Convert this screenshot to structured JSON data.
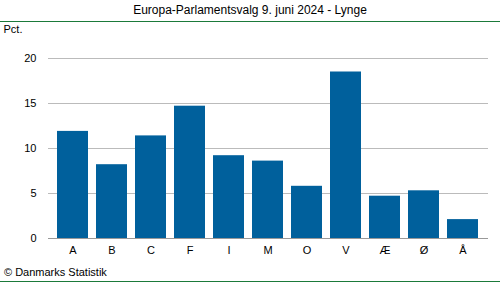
{
  "chart_data": {
    "type": "bar",
    "title": "Europa-Parlamentsvalg 9. juni 2024 - Lynge",
    "categories": [
      "A",
      "B",
      "C",
      "F",
      "I",
      "M",
      "O",
      "V",
      "Æ",
      "Ø",
      "Å"
    ],
    "values": [
      11.9,
      8.2,
      11.4,
      14.7,
      9.2,
      8.6,
      5.8,
      18.5,
      4.7,
      5.3,
      2.1
    ],
    "color": "#00609c",
    "ylabel": "Pct.",
    "caption": "© Danmarks Statistik",
    "ylim": [
      0,
      20
    ],
    "yticks": [
      0,
      5,
      10,
      15,
      20
    ],
    "grid": true
  }
}
